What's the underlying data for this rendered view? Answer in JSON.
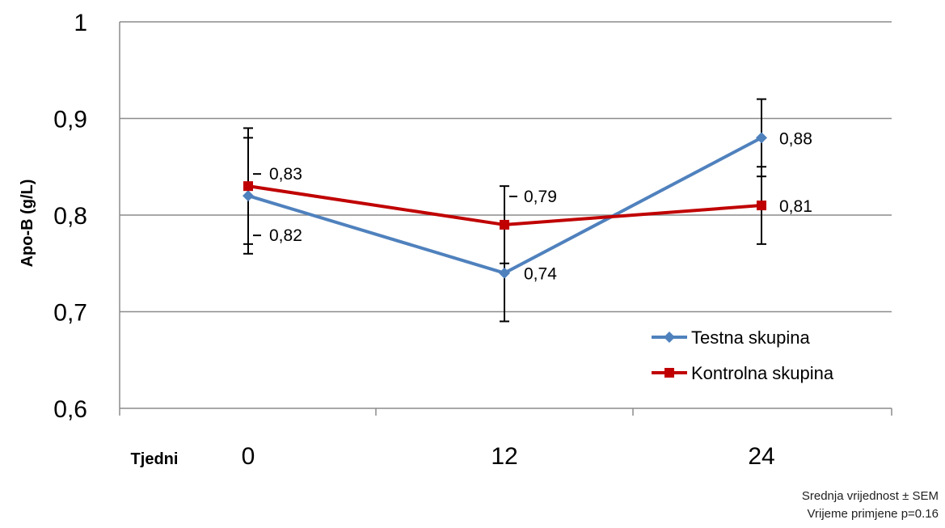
{
  "chart_data": {
    "type": "line",
    "ylabel": "Apo-B (g/L)",
    "xlabel": "Tjedni",
    "x": [
      "0",
      "12",
      "24"
    ],
    "ylim": [
      0.6,
      1
    ],
    "yticks": [
      "0,6",
      "0,7",
      "0,8",
      "0,9",
      "1"
    ],
    "ytick_values": [
      0.6,
      0.7,
      0.8,
      0.9,
      1.0
    ],
    "grid": true,
    "legend_position": "bottom-right",
    "series": [
      {
        "name": "Testna skupina",
        "color": "#4f81bd",
        "marker": "diamond",
        "values": [
          0.82,
          0.74,
          0.88
        ],
        "labels": [
          "0,82",
          "0,74",
          "0,88"
        ],
        "error_low": [
          0.76,
          0.69,
          0.84
        ],
        "error_high": [
          0.88,
          0.79,
          0.92
        ]
      },
      {
        "name": "Kontrolna skupina",
        "color": "#c00000",
        "marker": "square",
        "values": [
          0.83,
          0.79,
          0.81
        ],
        "labels": [
          "0,83",
          "0,79",
          "0,81"
        ],
        "error_low": [
          0.77,
          0.75,
          0.77
        ],
        "error_high": [
          0.89,
          0.83,
          0.85
        ]
      }
    ],
    "notes": [
      "Srednja vrijednost ± SEM",
      "Vrijeme primjene p=0.16"
    ]
  }
}
